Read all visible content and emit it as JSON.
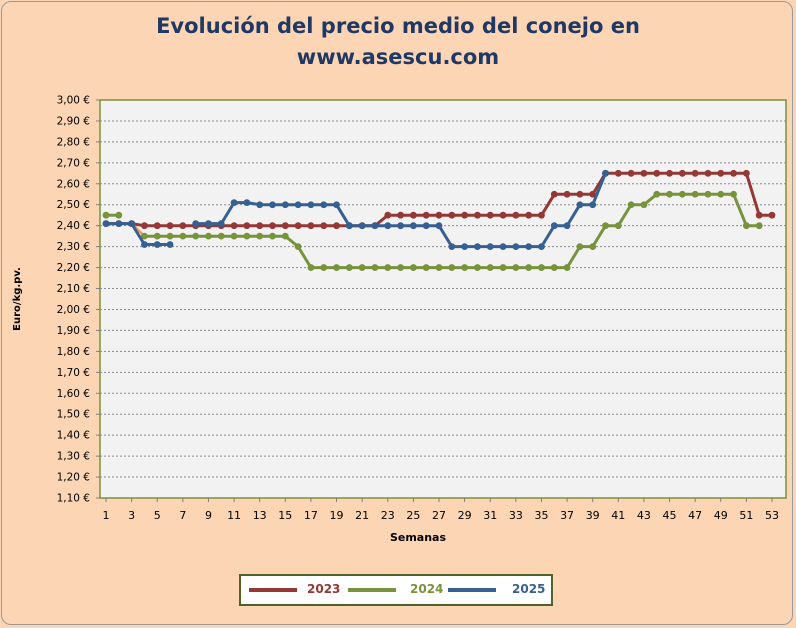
{
  "chart_data": {
    "type": "line",
    "title_lines": [
      "Evolución del precio medio del conejo en",
      "www.asescu.com"
    ],
    "xlabel": "Semanas",
    "ylabel": "Euro/kg.pv.",
    "ylim": [
      1.1,
      3.0
    ],
    "ytick_step": 0.1,
    "ytick_labels": [
      "1,10 €",
      "1,20 €",
      "1,30 €",
      "1,40 €",
      "1,50 €",
      "1,60 €",
      "1,70 €",
      "1,80 €",
      "1,90 €",
      "2,00 €",
      "2,10 €",
      "2,20 €",
      "2,30 €",
      "2,40 €",
      "2,50 €",
      "2,60 €",
      "2,70 €",
      "2,80 €",
      "2,90 €",
      "3,00 €"
    ],
    "xtick_labels": [
      "1",
      "3",
      "5",
      "7",
      "9",
      "11",
      "13",
      "15",
      "17",
      "19",
      "21",
      "23",
      "25",
      "27",
      "29",
      "31",
      "33",
      "35",
      "37",
      "39",
      "41",
      "43",
      "45",
      "47",
      "49",
      "51",
      "53"
    ],
    "x_range": [
      1,
      53
    ],
    "grid": true,
    "legend_position": "bottom",
    "series": [
      {
        "name": "2023",
        "color": "#953735",
        "values": [
          2.41,
          2.41,
          2.41,
          2.4,
          2.4,
          2.4,
          2.4,
          2.4,
          2.4,
          2.4,
          2.4,
          2.4,
          2.4,
          2.4,
          2.4,
          2.4,
          2.4,
          2.4,
          2.4,
          2.4,
          2.4,
          2.4,
          2.45,
          2.45,
          2.45,
          2.45,
          2.45,
          2.45,
          2.45,
          2.45,
          2.45,
          2.45,
          2.45,
          2.45,
          2.45,
          2.55,
          2.55,
          2.55,
          2.55,
          2.65,
          2.65,
          2.65,
          2.65,
          2.65,
          2.65,
          2.65,
          2.65,
          2.65,
          2.65,
          2.65,
          2.65,
          2.45,
          2.45
        ]
      },
      {
        "name": "2024",
        "color": "#77933c",
        "values": [
          2.45,
          2.45,
          null,
          2.35,
          2.35,
          2.35,
          2.35,
          2.35,
          2.35,
          2.35,
          2.35,
          2.35,
          2.35,
          2.35,
          2.35,
          2.3,
          2.2,
          2.2,
          2.2,
          2.2,
          2.2,
          2.2,
          2.2,
          2.2,
          2.2,
          2.2,
          2.2,
          2.2,
          2.2,
          2.2,
          2.2,
          2.2,
          2.2,
          2.2,
          2.2,
          2.2,
          2.2,
          2.3,
          2.3,
          2.4,
          2.4,
          2.5,
          2.5,
          2.55,
          2.55,
          2.55,
          2.55,
          2.55,
          2.55,
          2.55,
          2.4,
          2.4,
          null
        ]
      },
      {
        "name": "2025",
        "color": "#376092",
        "segments": [
          {
            "x_start": 1,
            "values": [
              2.41,
              2.41,
              2.41,
              2.31,
              2.31,
              2.31
            ]
          },
          {
            "x_start": 8,
            "values": [
              2.41,
              2.41,
              2.41,
              2.51,
              2.51,
              2.5,
              2.5,
              2.5,
              2.5,
              2.5,
              2.5,
              2.5,
              2.4,
              2.4,
              2.4,
              2.4,
              2.4,
              2.4,
              2.4,
              2.4,
              2.3,
              2.3,
              2.3,
              2.3,
              2.3,
              2.3,
              2.3,
              2.3,
              2.4,
              2.4,
              2.5,
              2.5,
              2.65
            ]
          }
        ]
      }
    ]
  },
  "legend": {
    "items": [
      {
        "label": "2023",
        "color": "#953735"
      },
      {
        "label": "2024",
        "color": "#77933c"
      },
      {
        "label": "2025",
        "color": "#376092"
      }
    ]
  }
}
